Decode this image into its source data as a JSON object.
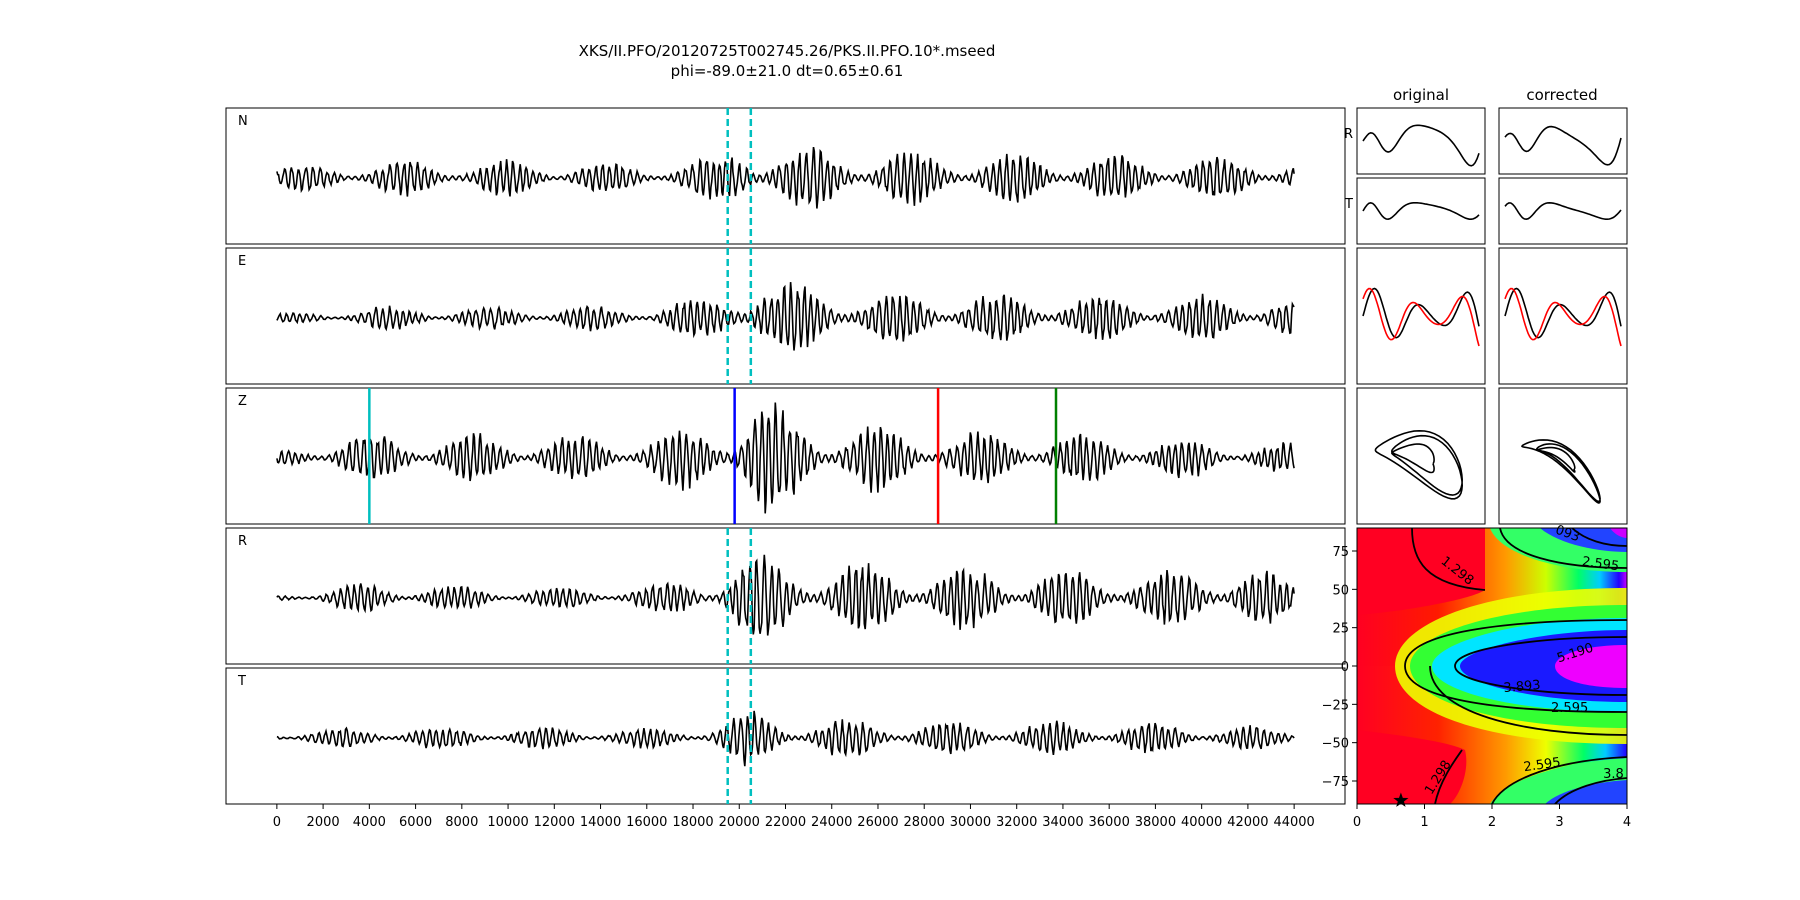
{
  "title": {
    "line1": "XKS/II.PFO/20120725T002745.26/PKS.II.PFO.10*.mseed",
    "line2": "phi=-89.0±21.0 dt=0.65±0.61"
  },
  "chart_data": [
    {
      "type": "line",
      "description_role": "seismogram traces",
      "traces": [
        "N",
        "E",
        "Z",
        "R",
        "T"
      ],
      "x_ticks": [
        0,
        2000,
        4000,
        6000,
        8000,
        10000,
        12000,
        14000,
        16000,
        18000,
        20000,
        22000,
        24000,
        26000,
        28000,
        30000,
        32000,
        34000,
        36000,
        38000,
        40000,
        42000,
        44000
      ],
      "x_range": [
        -2200,
        46200
      ],
      "data_x_range": [
        0,
        44000
      ],
      "window_lines": {
        "color": "#00bfbf",
        "x": [
          19500,
          20500
        ],
        "traces": [
          "N",
          "E",
          "R",
          "T"
        ]
      },
      "phase_markers": [
        {
          "x": 4000,
          "color": "#00bfbf"
        },
        {
          "x": 19800,
          "color": "#0000ff"
        },
        {
          "x": 28600,
          "color": "#ff0000"
        },
        {
          "x": 33700,
          "color": "#008000"
        }
      ],
      "grid": false
    },
    {
      "type": "line",
      "description_role": "window waveform comparison",
      "columns": [
        "original",
        "corrected"
      ],
      "rows": [
        "R",
        "T"
      ],
      "overlay_colors": [
        "#000000",
        "#ff0000"
      ]
    },
    {
      "type": "heatmap",
      "description_role": "error surface contours",
      "x_ticks": [
        0,
        1,
        2,
        3,
        4
      ],
      "y_ticks": [
        75,
        50,
        25,
        0,
        -25,
        -50,
        -75
      ],
      "x_range": [
        0,
        4
      ],
      "y_range": [
        -90,
        90
      ],
      "colormap": "gist_rainbow",
      "contour_labels": [
        {
          "text": "1.298",
          "x": 1.45,
          "y": 60,
          "rotation": 38
        },
        {
          "text": "2.595",
          "x": 3.6,
          "y": 64,
          "rotation": 8
        },
        {
          "text": "093",
          "x": 3.1,
          "y": 84,
          "rotation": 20
        },
        {
          "text": "5.190",
          "x": 3.25,
          "y": 6,
          "rotation": -18
        },
        {
          "text": "3.893",
          "x": 2.45,
          "y": -16,
          "rotation": -5
        },
        {
          "text": "2.595",
          "x": 3.15,
          "y": -30,
          "rotation": 0
        },
        {
          "text": "2.595",
          "x": 2.75,
          "y": -67,
          "rotation": -8
        },
        {
          "text": "1.298",
          "x": 1.25,
          "y": -74,
          "rotation": -58
        },
        {
          "text": "3.8",
          "x": 3.8,
          "y": -73,
          "rotation": 0
        }
      ],
      "best_fit": {
        "x": 0.65,
        "y": -89.0
      }
    }
  ]
}
